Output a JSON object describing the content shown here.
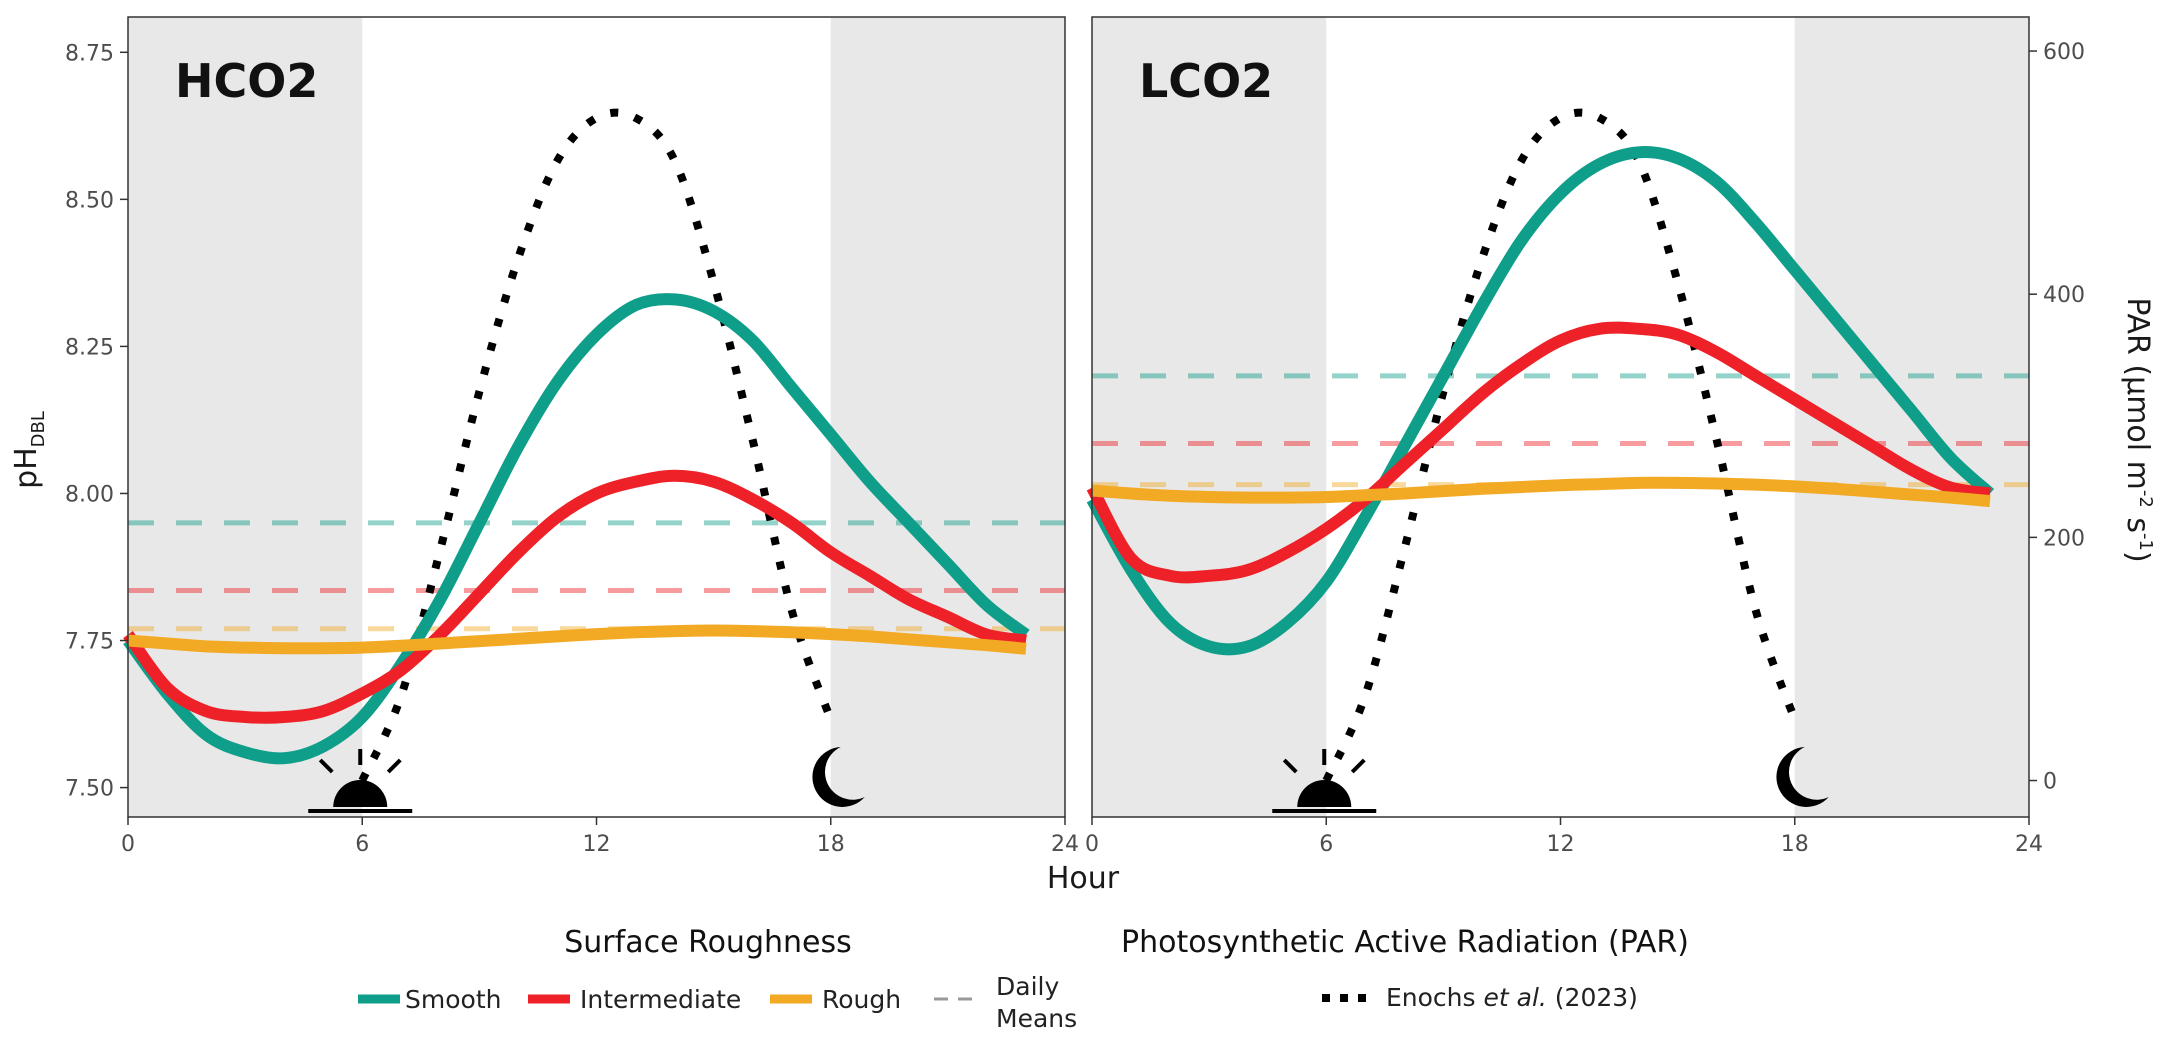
{
  "chart_data": [
    {
      "type": "line",
      "panel": "HCO2",
      "title": "HCO2",
      "xlabel": "Hour",
      "ylabel_main": "pH",
      "ylabel_sub": "DBL",
      "xlim": [
        0,
        24
      ],
      "ylim": [
        7.45,
        8.81
      ],
      "x_ticks": [
        0,
        6,
        12,
        18,
        24
      ],
      "y_ticks": [
        7.5,
        7.75,
        8.0,
        8.25,
        8.5,
        8.75
      ],
      "y_tick_labels": [
        "7.50",
        "7.75",
        "8.00",
        "8.25",
        "8.50",
        "8.75"
      ],
      "night_shading": [
        [
          0,
          6
        ],
        [
          18,
          24
        ]
      ],
      "series": [
        {
          "name": "Smooth",
          "color": "#0f9e8a",
          "x": [
            0,
            1,
            2,
            3,
            4,
            5,
            6,
            7,
            8,
            9,
            10,
            11,
            12,
            13,
            14,
            15,
            16,
            17,
            18,
            19,
            20,
            21,
            22,
            23
          ],
          "y": [
            7.75,
            7.66,
            7.59,
            7.56,
            7.55,
            7.57,
            7.62,
            7.71,
            7.82,
            7.95,
            8.08,
            8.19,
            8.27,
            8.32,
            8.33,
            8.31,
            8.26,
            8.18,
            8.1,
            8.02,
            7.95,
            7.88,
            7.81,
            7.76
          ]
        },
        {
          "name": "Intermediate",
          "color": "#ee2128",
          "x": [
            0,
            1,
            2,
            3,
            4,
            5,
            6,
            7,
            8,
            9,
            10,
            11,
            12,
            13,
            14,
            15,
            16,
            17,
            18,
            19,
            20,
            21,
            22,
            23
          ],
          "y": [
            7.76,
            7.67,
            7.63,
            7.62,
            7.62,
            7.63,
            7.66,
            7.7,
            7.76,
            7.83,
            7.9,
            7.96,
            8.0,
            8.02,
            8.03,
            8.02,
            7.99,
            7.95,
            7.9,
            7.86,
            7.82,
            7.79,
            7.76,
            7.75
          ]
        },
        {
          "name": "Rough",
          "color": "#f2a924",
          "x": [
            0,
            1,
            2,
            3,
            4,
            5,
            6,
            7,
            8,
            9,
            10,
            11,
            12,
            13,
            14,
            15,
            16,
            17,
            18,
            19,
            20,
            21,
            22,
            23
          ],
          "y": [
            7.75,
            7.745,
            7.74,
            7.738,
            7.737,
            7.737,
            7.738,
            7.741,
            7.745,
            7.749,
            7.753,
            7.757,
            7.761,
            7.764,
            7.766,
            7.767,
            7.766,
            7.764,
            7.761,
            7.757,
            7.752,
            7.747,
            7.742,
            7.736
          ]
        }
      ],
      "daily_means": [
        {
          "name": "Smooth",
          "color": "#0f9e8a",
          "value": 7.95
        },
        {
          "name": "Intermediate",
          "color": "#ee2128",
          "value": 7.835
        },
        {
          "name": "Rough",
          "color": "#f2a924",
          "value": 7.77
        }
      ],
      "par_series": {
        "name": "Enochs et al. (2023)",
        "color": "#000000",
        "x": [
          6,
          7,
          8,
          9,
          10,
          11,
          12,
          13,
          14,
          15,
          16,
          17,
          18
        ],
        "y": [
          0,
          70,
          190,
          320,
          430,
          510,
          545,
          545,
          510,
          410,
          280,
          140,
          50
        ]
      }
    },
    {
      "type": "line",
      "panel": "LCO2",
      "title": "LCO2",
      "xlabel": "Hour",
      "y2label_main": "PAR (μmol m",
      "y2label_exp1": "-2",
      "y2label_mid": " s",
      "y2label_exp2": "-1",
      "y2label_end": ")",
      "xlim": [
        0,
        24
      ],
      "ylim": [
        7.45,
        8.81
      ],
      "y2lim": [
        -30,
        628
      ],
      "x_ticks": [
        0,
        6,
        12,
        18,
        24
      ],
      "y2_ticks": [
        0,
        200,
        400,
        600
      ],
      "y2_tick_labels": [
        "0",
        "200",
        "400",
        "600"
      ],
      "night_shading": [
        [
          0,
          6
        ],
        [
          18,
          24
        ]
      ],
      "series": [
        {
          "name": "Smooth",
          "color": "#0f9e8a",
          "x": [
            0,
            1,
            2,
            3,
            4,
            5,
            6,
            7,
            8,
            9,
            10,
            11,
            12,
            13,
            14,
            15,
            16,
            17,
            18,
            19,
            20,
            21,
            22,
            23
          ],
          "y": [
            7.99,
            7.87,
            7.78,
            7.74,
            7.74,
            7.78,
            7.85,
            7.96,
            8.08,
            8.2,
            8.32,
            8.43,
            8.51,
            8.56,
            8.58,
            8.57,
            8.53,
            8.46,
            8.38,
            8.3,
            8.22,
            8.14,
            8.06,
            8.0
          ]
        },
        {
          "name": "Intermediate",
          "color": "#ee2128",
          "x": [
            0,
            1,
            2,
            3,
            4,
            5,
            6,
            7,
            8,
            9,
            10,
            11,
            12,
            13,
            14,
            15,
            16,
            17,
            18,
            19,
            20,
            21,
            22,
            23
          ],
          "y": [
            8.01,
            7.89,
            7.86,
            7.86,
            7.87,
            7.9,
            7.94,
            7.99,
            8.05,
            8.11,
            8.17,
            8.22,
            8.26,
            8.28,
            8.28,
            8.27,
            8.24,
            8.2,
            8.16,
            8.12,
            8.08,
            8.04,
            8.01,
            8.0
          ]
        },
        {
          "name": "Rough",
          "color": "#f2a924",
          "x": [
            0,
            1,
            2,
            3,
            4,
            5,
            6,
            7,
            8,
            9,
            10,
            11,
            12,
            13,
            14,
            15,
            16,
            17,
            18,
            19,
            20,
            21,
            22,
            23
          ],
          "y": [
            8.005,
            8.0,
            7.996,
            7.994,
            7.993,
            7.993,
            7.994,
            7.997,
            8.0,
            8.004,
            8.008,
            8.011,
            8.014,
            8.016,
            8.018,
            8.018,
            8.017,
            8.015,
            8.012,
            8.008,
            8.003,
            7.998,
            7.993,
            7.987
          ]
        }
      ],
      "daily_means": [
        {
          "name": "Smooth",
          "color": "#0f9e8a",
          "value": 8.2
        },
        {
          "name": "Intermediate",
          "color": "#ee2128",
          "value": 8.085
        },
        {
          "name": "Rough",
          "color": "#f2a924",
          "value": 8.015
        }
      ],
      "par_series": {
        "name": "Enochs et al. (2023)",
        "color": "#000000",
        "x": [
          6,
          7,
          8,
          9,
          10,
          11,
          12,
          13,
          14,
          15,
          16,
          17,
          18
        ],
        "y": [
          0,
          70,
          190,
          320,
          430,
          510,
          545,
          545,
          510,
          410,
          280,
          140,
          50
        ]
      }
    }
  ],
  "shared_xlabel": "Hour",
  "legend": {
    "roughness_title": "Surface Roughness",
    "par_title": "Photosynthetic Active Radiation (PAR)",
    "items": [
      {
        "label": "Smooth",
        "color": "#0f9e8a"
      },
      {
        "label": "Intermediate",
        "color": "#ee2128"
      },
      {
        "label": "Rough",
        "color": "#f2a924"
      }
    ],
    "daily_means_line1": "Daily",
    "daily_means_line2": "Means",
    "par_label_pre": "Enochs ",
    "par_label_italic": "et al.",
    "par_label_post": " (2023)"
  },
  "icons": {
    "sunrise": "sunrise-icon",
    "moon": "moon-icon"
  }
}
